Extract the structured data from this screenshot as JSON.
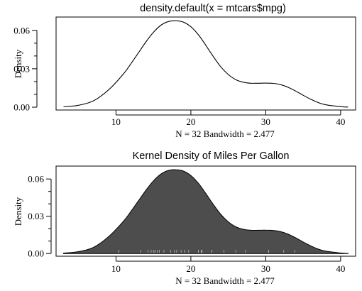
{
  "chart_data": [
    {
      "type": "line",
      "title": "density.default(x = mtcars$mpg)",
      "xlabel": "N = 32   Bandwidth = 2.477",
      "ylabel": "Density",
      "xlim": [
        2.0,
        42.0
      ],
      "ylim": [
        -0.0022,
        0.0704
      ],
      "x_ticks": [
        10,
        20,
        30,
        40
      ],
      "y_ticks": [
        0.0,
        0.03,
        0.06
      ],
      "y_tick_labels": [
        "0.00",
        "0.03",
        "0.06"
      ],
      "grid": false,
      "filled": false,
      "series": [
        {
          "x": [
            3,
            5,
            7,
            9,
            11,
            12,
            13,
            14,
            15,
            16,
            17,
            18,
            19,
            20,
            21,
            22,
            23,
            24,
            25,
            26,
            27,
            28,
            29,
            30,
            31,
            32,
            33,
            34,
            35,
            36,
            37,
            38,
            40,
            41
          ],
          "values": [
            0.0003,
            0.0015,
            0.005,
            0.0135,
            0.026,
            0.034,
            0.0425,
            0.051,
            0.0585,
            0.064,
            0.0669,
            0.0675,
            0.0664,
            0.0628,
            0.0566,
            0.0483,
            0.0395,
            0.0315,
            0.0255,
            0.0215,
            0.0195,
            0.0187,
            0.0187,
            0.0188,
            0.0186,
            0.0176,
            0.0155,
            0.0126,
            0.0093,
            0.0062,
            0.0036,
            0.0019,
            0.0004,
            0.0001
          ]
        }
      ]
    },
    {
      "type": "area",
      "title": "Kernel Density of Miles Per Gallon",
      "xlabel": "N = 32   Bandwidth = 2.477",
      "ylabel": "Density",
      "xlim": [
        2.0,
        42.0
      ],
      "ylim": [
        -0.0022,
        0.0704
      ],
      "x_ticks": [
        10,
        20,
        30,
        40
      ],
      "y_ticks": [
        0.0,
        0.03,
        0.06
      ],
      "y_tick_labels": [
        "0.00",
        "0.03",
        "0.06"
      ],
      "grid": false,
      "fill_color": "#4d4d4d",
      "rug_color": "#b8b8b8",
      "rug": [
        10.4,
        10.4,
        13.3,
        14.3,
        14.7,
        15.0,
        15.2,
        15.2,
        15.5,
        15.8,
        16.4,
        17.3,
        17.8,
        18.1,
        18.7,
        19.2,
        19.2,
        19.7,
        21.0,
        21.0,
        21.4,
        21.4,
        21.5,
        22.8,
        22.8,
        24.4,
        26.0,
        27.3,
        30.4,
        30.4,
        32.4,
        33.9
      ],
      "series": [
        {
          "x": [
            3,
            5,
            7,
            9,
            11,
            12,
            13,
            14,
            15,
            16,
            17,
            18,
            19,
            20,
            21,
            22,
            23,
            24,
            25,
            26,
            27,
            28,
            29,
            30,
            31,
            32,
            33,
            34,
            35,
            36,
            37,
            38,
            40,
            41
          ],
          "values": [
            0.0003,
            0.0015,
            0.005,
            0.0135,
            0.026,
            0.034,
            0.0425,
            0.051,
            0.0585,
            0.064,
            0.0669,
            0.0675,
            0.0664,
            0.0628,
            0.0566,
            0.0483,
            0.0395,
            0.0315,
            0.0255,
            0.0215,
            0.0195,
            0.0187,
            0.0187,
            0.0188,
            0.0186,
            0.0176,
            0.0155,
            0.0126,
            0.0093,
            0.0062,
            0.0036,
            0.0019,
            0.0004,
            0.0001
          ]
        }
      ]
    }
  ]
}
